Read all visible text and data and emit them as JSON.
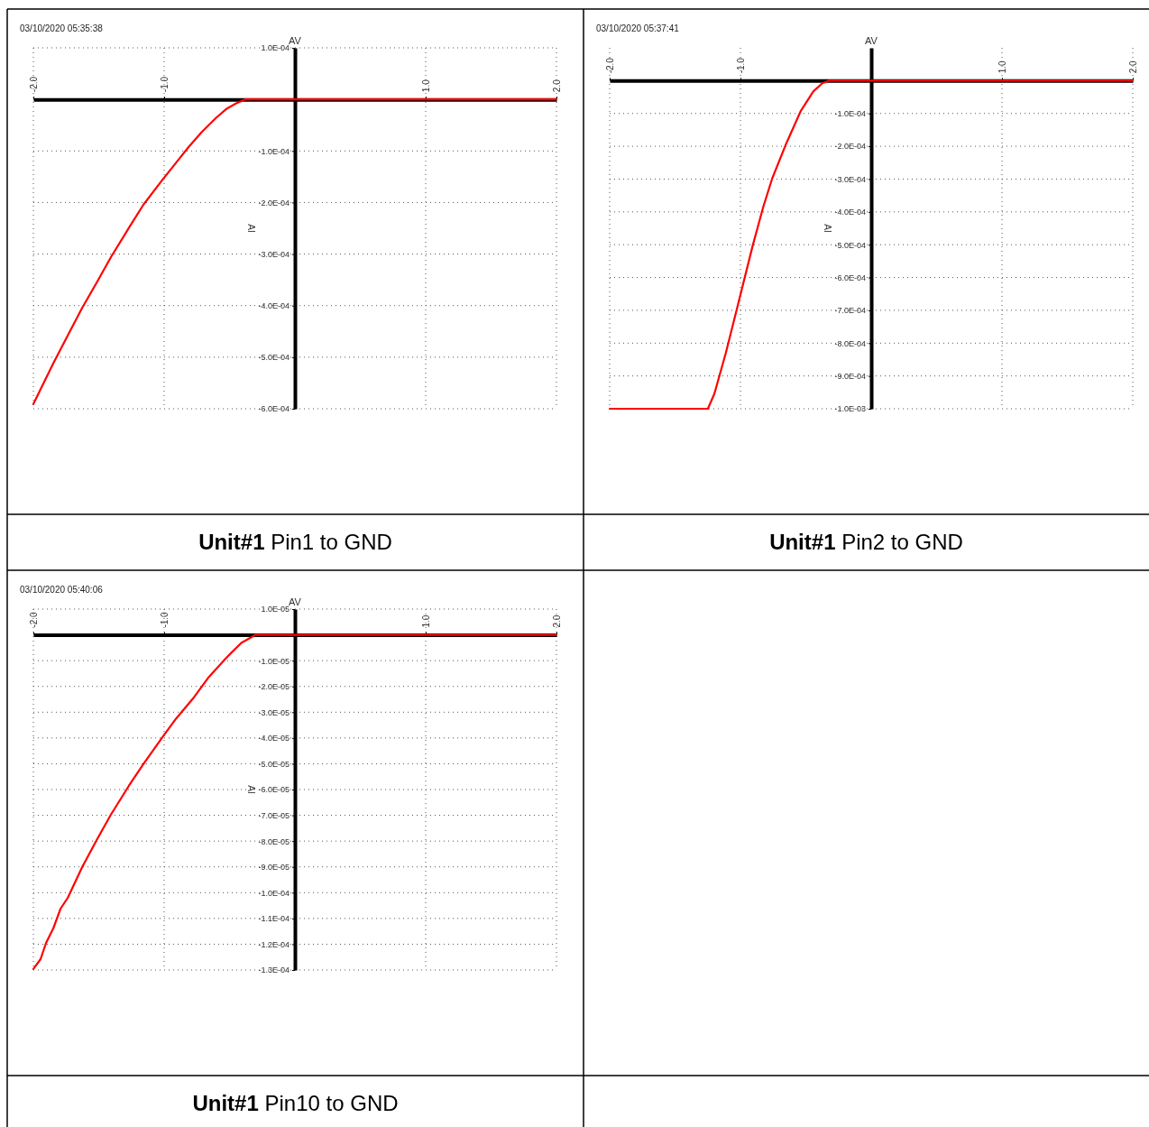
{
  "chart_data": [
    {
      "type": "line",
      "title": "Unit#1 Pin1 to GND",
      "xlabel": "AV",
      "ylabel": "AI",
      "annotations": [
        "03/10/2020 05:35:38"
      ],
      "grid": true,
      "xlim": [
        -2,
        2
      ],
      "xticks": [
        {
          "value": -2,
          "label": "-2.0"
        },
        {
          "value": -1,
          "label": "-1.0"
        },
        {
          "value": 1,
          "label": "1.0"
        },
        {
          "value": 2,
          "label": "2.0"
        }
      ],
      "ylim": [
        -0.0006,
        0.0001
      ],
      "yticks": [
        {
          "value": 0.0001,
          "label": "1.0E-04"
        },
        {
          "value": -0.0001,
          "label": "-1.0E-04"
        },
        {
          "value": -0.0002,
          "label": "-2.0E-04"
        },
        {
          "value": -0.0003,
          "label": "-3.0E-04"
        },
        {
          "value": -0.0004,
          "label": "-4.0E-04"
        },
        {
          "value": -0.0005,
          "label": "-5.0E-04"
        },
        {
          "value": -0.0006,
          "label": "-6.0E-04"
        }
      ],
      "series": [
        {
          "color": "#ff0000",
          "x": [
            -2,
            -1.848,
            -1.737,
            -1.626,
            -1.515,
            -1.407,
            -1.269,
            -1.158,
            -1.019,
            -0.909,
            -0.812,
            -0.715,
            -0.604,
            -0.521,
            -0.452,
            -0.382,
            0,
            1,
            2
          ],
          "values": [
            -0.000591,
            -0.000512,
            -0.000458,
            -0.000404,
            -0.000355,
            -0.000306,
            -0.000249,
            -0.000204,
            -0.000158,
            -0.000123,
            -9.2e-05,
            -6.4e-05,
            -3.6e-05,
            -1.8e-05,
            -8e-06,
            0,
            0,
            0,
            0
          ]
        }
      ]
    },
    {
      "type": "line",
      "title": "Unit#1 Pin2 to GND",
      "xlabel": "AV",
      "ylabel": "AI",
      "annotations": [
        "03/10/2020 05:37:41"
      ],
      "grid": true,
      "xlim": [
        -2,
        2
      ],
      "xticks": [
        {
          "value": -2,
          "label": "-2.0"
        },
        {
          "value": -1,
          "label": "-1.0"
        },
        {
          "value": 1,
          "label": "1.0"
        },
        {
          "value": 2,
          "label": "2.0"
        }
      ],
      "ylim": [
        -0.001,
        0.0001
      ],
      "yticks": [
        {
          "value": -0.0001,
          "label": "-1.0E-04"
        },
        {
          "value": -0.0002,
          "label": "-2.0E-04"
        },
        {
          "value": -0.0003,
          "label": "-3.0E-04"
        },
        {
          "value": -0.0004,
          "label": "-4.0E-04"
        },
        {
          "value": -0.0005,
          "label": "-5.0E-04"
        },
        {
          "value": -0.0006,
          "label": "-6.0E-04"
        },
        {
          "value": -0.0007,
          "label": "-7.0E-04"
        },
        {
          "value": -0.0008,
          "label": "-8.0E-04"
        },
        {
          "value": -0.0009,
          "label": "-9.0E-04"
        },
        {
          "value": -0.001,
          "label": "-1.0E-03"
        }
      ],
      "series": [
        {
          "color": "#ff0000",
          "x": [
            -2,
            -1.249,
            -1.199,
            -1.112,
            -1.03,
            -0.907,
            -0.825,
            -0.757,
            -0.648,
            -0.538,
            -0.443,
            -0.374,
            -0.32,
            0,
            1,
            2
          ],
          "values": [
            -0.001,
            -0.001,
            -0.000954,
            -0.00083,
            -0.0007,
            -0.000504,
            -0.000384,
            -0.000298,
            -0.00019,
            -9.2e-05,
            -3.3e-05,
            -8e-06,
            0,
            0,
            0,
            0
          ]
        }
      ]
    },
    {
      "type": "line",
      "title": "Unit#1 Pin10 to GND",
      "xlabel": "AV",
      "ylabel": "AI",
      "annotations": [
        "03/10/2020 05:40:06"
      ],
      "grid": true,
      "xlim": [
        -2,
        2
      ],
      "xticks": [
        {
          "value": -2,
          "label": "-2.0"
        },
        {
          "value": -1,
          "label": "-1.0"
        },
        {
          "value": 1,
          "label": "1.0"
        },
        {
          "value": 2,
          "label": "2.0"
        }
      ],
      "ylim": [
        -0.00013,
        1e-05
      ],
      "yticks": [
        {
          "value": 1e-05,
          "label": "1.0E-05"
        },
        {
          "value": -1e-05,
          "label": "-1.0E-05"
        },
        {
          "value": -2e-05,
          "label": "-2.0E-05"
        },
        {
          "value": -3e-05,
          "label": "-3.0E-05"
        },
        {
          "value": -4e-05,
          "label": "-4.0E-05"
        },
        {
          "value": -5e-05,
          "label": "-5.0E-05"
        },
        {
          "value": -6e-05,
          "label": "-6.0E-05"
        },
        {
          "value": -7e-05,
          "label": "-7.0E-05"
        },
        {
          "value": -8e-05,
          "label": "-8.0E-05"
        },
        {
          "value": -9e-05,
          "label": "-9.0E-05"
        },
        {
          "value": -0.0001,
          "label": "-1.0E-04"
        },
        {
          "value": -0.00011,
          "label": "-1.1E-04"
        },
        {
          "value": -0.00012,
          "label": "-1.2E-04"
        },
        {
          "value": -0.00013,
          "label": "-1.3E-04"
        }
      ],
      "series": [
        {
          "color": "#ff0000",
          "x": [
            -2,
            -1.945,
            -1.903,
            -1.848,
            -1.792,
            -1.737,
            -1.626,
            -1.515,
            -1.407,
            -1.269,
            -1.158,
            -1,
            -0.909,
            -0.77,
            -0.659,
            -0.521,
            -0.41,
            -0.3,
            0,
            1,
            2
          ],
          "values": [
            -0.0001296,
            -0.0001258,
            -0.0001195,
            -0.0001139,
            -0.0001062,
            -0.000102,
            -9e-05,
            -7.95e-05,
            -6.97e-05,
            -5.85e-05,
            -5.01e-05,
            -3.88e-05,
            -3.25e-05,
            -2.41e-05,
            -1.64e-05,
            -8.7e-06,
            -3.1e-06,
            0,
            0,
            0,
            0
          ]
        }
      ]
    }
  ]
}
